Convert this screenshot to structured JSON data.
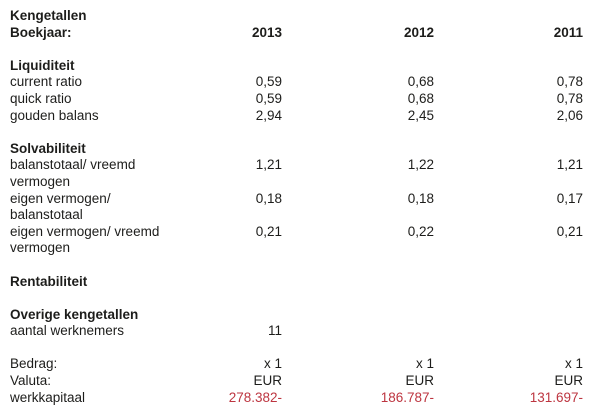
{
  "report": {
    "title": "Kengetallen",
    "year_row_label": "Boekjaar:",
    "years": [
      "2013",
      "2012",
      "2011"
    ],
    "negative_color": "#bd3540",
    "text_color": "#1d1d1b",
    "background_color": "#ffffff"
  },
  "table": {
    "rows": [
      {
        "label": "Kengetallen",
        "v2013": "",
        "v2012": "",
        "v2011": ""
      },
      {
        "label": "Boekjaar:",
        "v2013": "2013",
        "v2012": "2012",
        "v2011": "2011"
      },
      {
        "label": "",
        "v2013": "",
        "v2012": "",
        "v2011": ""
      },
      {
        "label": "Liquiditeit",
        "v2013": "",
        "v2012": "",
        "v2011": ""
      },
      {
        "label": "current ratio",
        "v2013": "0,59",
        "v2012": "0,68",
        "v2011": "0,78"
      },
      {
        "label": "quick ratio",
        "v2013": "0,59",
        "v2012": "0,68",
        "v2011": "0,78"
      },
      {
        "label": "gouden balans",
        "v2013": "2,94",
        "v2012": "2,45",
        "v2011": "2,06"
      },
      {
        "label": "",
        "v2013": "",
        "v2012": "",
        "v2011": ""
      },
      {
        "label": "Solvabiliteit",
        "v2013": "",
        "v2012": "",
        "v2011": ""
      },
      {
        "label": "balanstotaal/ vreemd vermogen",
        "v2013": "1,21",
        "v2012": "1,22",
        "v2011": "1,21"
      },
      {
        "label": "eigen vermogen/ balanstotaal",
        "v2013": "0,18",
        "v2012": "0,18",
        "v2011": "0,17"
      },
      {
        "label": "eigen vermogen/ vreemd vermogen",
        "v2013": "0,21",
        "v2012": "0,22",
        "v2011": "0,21"
      },
      {
        "label": "",
        "v2013": "",
        "v2012": "",
        "v2011": ""
      },
      {
        "label": "Rentabiliteit",
        "v2013": "",
        "v2012": "",
        "v2011": ""
      },
      {
        "label": "",
        "v2013": "",
        "v2012": "",
        "v2011": ""
      },
      {
        "label": "Overige kengetallen",
        "v2013": "",
        "v2012": "",
        "v2011": ""
      },
      {
        "label": "aantal werknemers",
        "v2013": "11",
        "v2012": "",
        "v2011": ""
      },
      {
        "label": "",
        "v2013": "",
        "v2012": "",
        "v2011": ""
      },
      {
        "label": "Bedrag:",
        "v2013": "x 1",
        "v2012": "x 1",
        "v2011": "x 1"
      },
      {
        "label": "Valuta:",
        "v2013": "EUR",
        "v2012": "EUR",
        "v2011": "EUR"
      },
      {
        "label": "werkkapitaal",
        "v2013": "278.382-",
        "v2012": "186.787-",
        "v2011": "131.697-"
      }
    ]
  }
}
